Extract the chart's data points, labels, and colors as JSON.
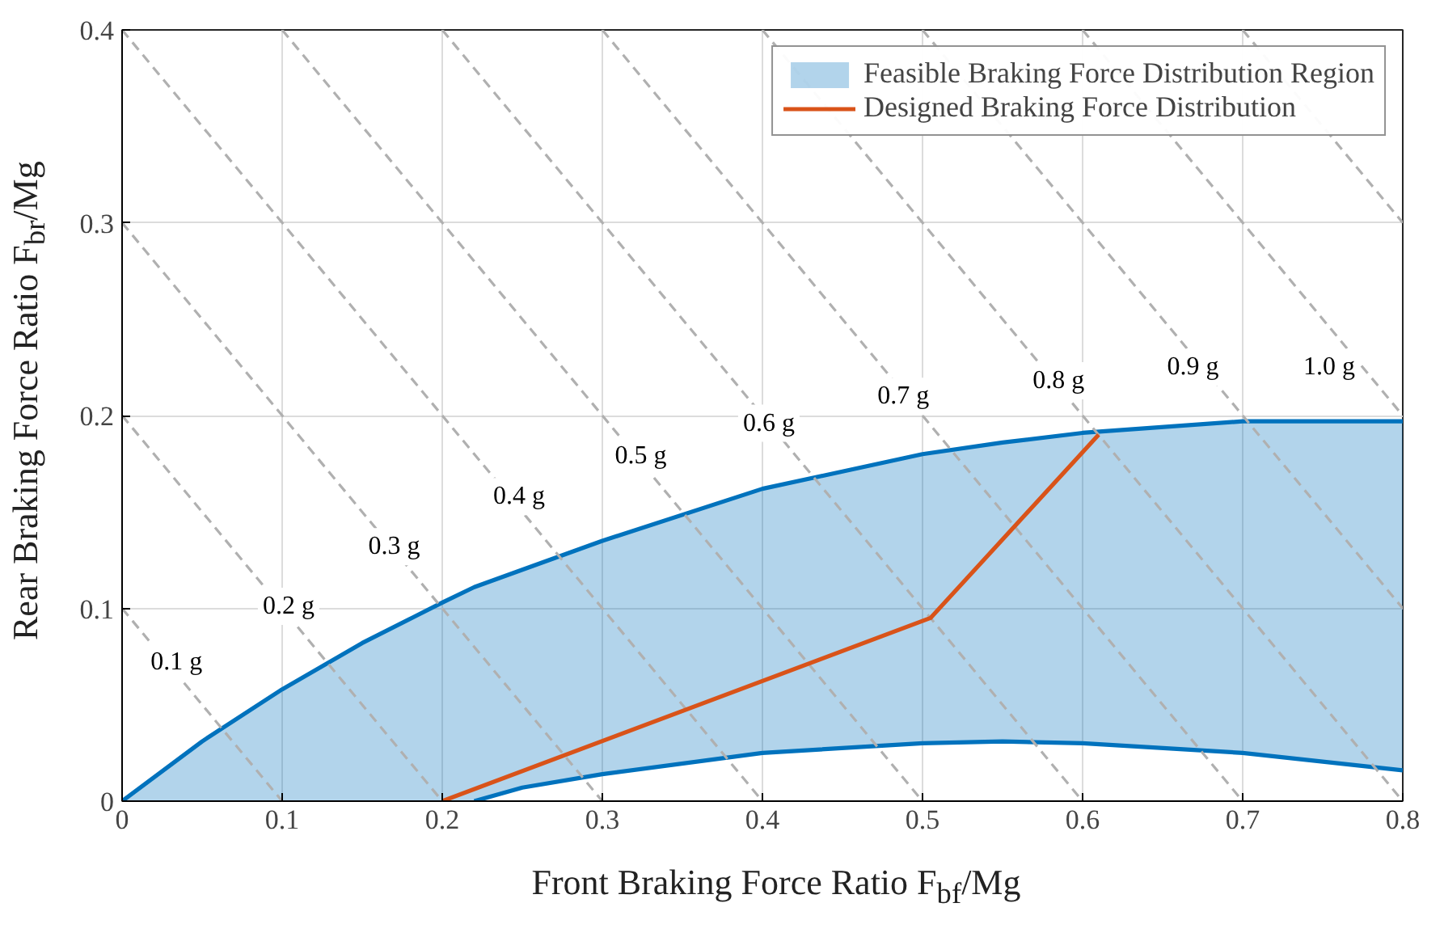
{
  "chart_data": {
    "type": "line",
    "xlabel": "Front Braking Force Ratio F$_{bf}$/Mg",
    "ylabel": "Rear Braking Force Ratio F$_{br}$/Mg",
    "xlim": [
      0,
      0.8
    ],
    "ylim": [
      0,
      0.4
    ],
    "xticks": [
      0,
      0.1,
      0.2,
      0.3,
      0.4,
      0.5,
      0.6,
      0.7,
      0.8
    ],
    "yticks": [
      0,
      0.1,
      0.2,
      0.3,
      0.4
    ],
    "grid": true,
    "legend": "top right",
    "series": [
      {
        "name": "Feasible Braking Force Distribution Region",
        "color": "#0072bd",
        "x": [
          0,
          0.05,
          0.1,
          0.15,
          0.2,
          0.22,
          0.25,
          0.3,
          0.4,
          0.5,
          0.55,
          0.6,
          0.7,
          0.8
        ],
        "values": [
          0,
          0.031,
          0.058,
          0.082,
          0.103,
          0.111,
          0.12,
          0.135,
          0.162,
          0.18,
          0.186,
          0.191,
          0.197,
          0.197
        ],
        "lower": [
          0,
          0,
          0,
          0,
          0,
          0,
          0.007,
          0.014,
          0.025,
          0.03,
          0.031,
          0.03,
          0.025,
          0.016
        ],
        "upper": [
          0,
          0.031,
          0.058,
          0.082,
          0.103,
          0.111,
          0.12,
          0.135,
          0.162,
          0.18,
          0.186,
          0.191,
          0.197,
          0.197
        ]
      },
      {
        "color": "#0072bd",
        "x": [
          0.22,
          0.25,
          0.3,
          0.4,
          0.5,
          0.55,
          0.6,
          0.7,
          0.8
        ],
        "values": [
          0,
          0.007,
          0.014,
          0.025,
          0.03,
          0.031,
          0.03,
          0.025,
          0.016
        ]
      },
      {
        "color": "#b0b0b0",
        "line_style": "dashed",
        "x": [
          0,
          0.1
        ],
        "values": [
          0.1,
          0
        ]
      },
      {
        "color": "#b0b0b0",
        "line_style": "dashed",
        "x": [
          0,
          0.2
        ],
        "values": [
          0.2,
          0
        ]
      },
      {
        "color": "#b0b0b0",
        "line_style": "dashed",
        "x": [
          0,
          0.3
        ],
        "values": [
          0.3,
          0
        ]
      },
      {
        "color": "#b0b0b0",
        "line_style": "dashed",
        "x": [
          0,
          0.4
        ],
        "values": [
          0.4,
          0
        ]
      },
      {
        "color": "#b0b0b0",
        "line_style": "dashed",
        "x": [
          0.1,
          0.5
        ],
        "values": [
          0.4,
          0
        ]
      },
      {
        "color": "#b0b0b0",
        "line_style": "dashed",
        "x": [
          0.2,
          0.6
        ],
        "values": [
          0.4,
          0
        ]
      },
      {
        "color": "#b0b0b0",
        "line_style": "dashed",
        "x": [
          0.3,
          0.7
        ],
        "values": [
          0.4,
          0
        ]
      },
      {
        "color": "#b0b0b0",
        "line_style": "dashed",
        "x": [
          0.4,
          0.8
        ],
        "values": [
          0.4,
          0
        ]
      },
      {
        "color": "#b0b0b0",
        "line_style": "dashed",
        "x": [
          0.5,
          0.8
        ],
        "values": [
          0.4,
          0.1
        ]
      },
      {
        "color": "#b0b0b0",
        "line_style": "dashed",
        "x": [
          0.6,
          0.8
        ],
        "values": [
          0.4,
          0.2
        ]
      },
      {
        "color": "#b0b0b0",
        "line_style": "dashed",
        "x": [
          0.7,
          0.8
        ],
        "values": [
          0.4,
          0.3
        ]
      },
      {
        "name": "Designed Braking Force Distribution",
        "color": "#d95319",
        "x": [
          0.2,
          0.505,
          0.61
        ],
        "values": [
          0,
          0.095,
          0.19
        ]
      }
    ],
    "annotations": [
      {
        "text": "0.1 g",
        "x": 0.034,
        "y": 0.072
      },
      {
        "text": "0.2 g",
        "x": 0.104,
        "y": 0.101
      },
      {
        "text": "0.3 g",
        "x": 0.17,
        "y": 0.132
      },
      {
        "text": "0.4 g",
        "x": 0.248,
        "y": 0.158
      },
      {
        "text": "0.5 g",
        "x": 0.324,
        "y": 0.179
      },
      {
        "text": "0.6 g",
        "x": 0.404,
        "y": 0.196
      },
      {
        "text": "0.7 g",
        "x": 0.488,
        "y": 0.21
      },
      {
        "text": "0.8 g",
        "x": 0.585,
        "y": 0.218
      },
      {
        "text": "0.9 g",
        "x": 0.669,
        "y": 0.225
      },
      {
        "text": "1.0 g",
        "x": 0.754,
        "y": 0.225
      }
    ]
  }
}
